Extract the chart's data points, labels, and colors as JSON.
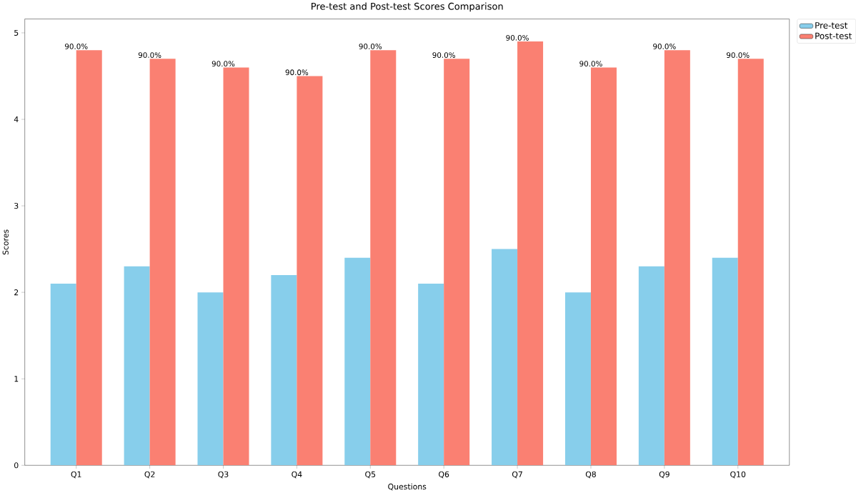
{
  "chart_data": {
    "type": "bar",
    "title": "Pre-test and Post-test Scores Comparison",
    "xlabel": "Questions",
    "ylabel": "Scores",
    "categories": [
      "Q1",
      "Q2",
      "Q3",
      "Q4",
      "Q5",
      "Q6",
      "Q7",
      "Q8",
      "Q9",
      "Q10"
    ],
    "series": [
      {
        "name": "Pre-test",
        "color": "#87ceeb",
        "values": [
          2.1,
          2.3,
          2.0,
          2.2,
          2.4,
          2.1,
          2.5,
          2.0,
          2.3,
          2.4
        ]
      },
      {
        "name": "Post-test",
        "color": "#fa8072",
        "values": [
          4.8,
          4.7,
          4.6,
          4.5,
          4.8,
          4.7,
          4.9,
          4.6,
          4.8,
          4.7
        ]
      }
    ],
    "annotations": [
      {
        "text": "90.0%",
        "x": "Q1",
        "y": 4.8
      },
      {
        "text": "90.0%",
        "x": "Q2",
        "y": 4.7
      },
      {
        "text": "90.0%",
        "x": "Q3",
        "y": 4.6
      },
      {
        "text": "90.0%",
        "x": "Q4",
        "y": 4.5
      },
      {
        "text": "90.0%",
        "x": "Q5",
        "y": 4.8
      },
      {
        "text": "90.0%",
        "x": "Q6",
        "y": 4.7
      },
      {
        "text": "90.0%",
        "x": "Q7",
        "y": 4.9
      },
      {
        "text": "90.0%",
        "x": "Q8",
        "y": 4.6
      },
      {
        "text": "90.0%",
        "x": "Q9",
        "y": 4.8
      },
      {
        "text": "90.0%",
        "x": "Q10",
        "y": 4.7
      }
    ],
    "ylim": [
      0,
      5.16
    ],
    "yticks": [
      0,
      1,
      2,
      3,
      4,
      5
    ],
    "grid": false,
    "legend": "top right"
  }
}
